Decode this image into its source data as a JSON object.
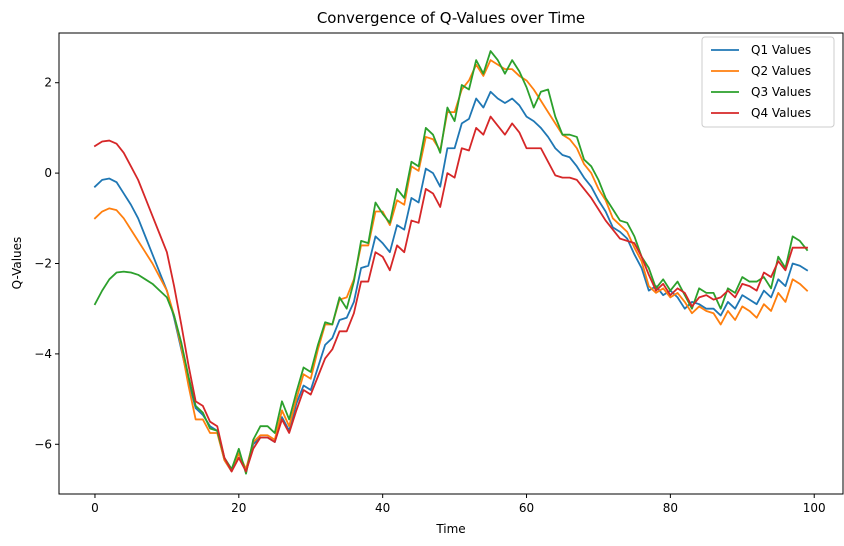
{
  "chart_data": {
    "type": "line",
    "title": "Convergence of Q-Values over Time",
    "xlabel": "Time",
    "ylabel": "Q-Values",
    "xlim": [
      -5,
      104
    ],
    "ylim": [
      -7.1,
      3.1
    ],
    "xticks": [
      0,
      20,
      40,
      60,
      80,
      100
    ],
    "yticks": [
      -6,
      -4,
      -2,
      0,
      2
    ],
    "xtick_labels": [
      "0",
      "20",
      "40",
      "60",
      "80",
      "100"
    ],
    "ytick_labels": [
      "−6",
      "−4",
      "−2",
      "0",
      "2"
    ],
    "grid": false,
    "legend_position": "top-right",
    "x": [
      0,
      1,
      2,
      3,
      4,
      5,
      6,
      7,
      8,
      9,
      10,
      11,
      12,
      13,
      14,
      15,
      16,
      17,
      18,
      19,
      20,
      21,
      22,
      23,
      24,
      25,
      26,
      27,
      28,
      29,
      30,
      31,
      32,
      33,
      34,
      35,
      36,
      37,
      38,
      39,
      40,
      41,
      42,
      43,
      44,
      45,
      46,
      47,
      48,
      49,
      50,
      51,
      52,
      53,
      54,
      55,
      56,
      57,
      58,
      59,
      60,
      61,
      62,
      63,
      64,
      65,
      66,
      67,
      68,
      69,
      70,
      71,
      72,
      73,
      74,
      75,
      76,
      77,
      78,
      79,
      80,
      81,
      82,
      83,
      84,
      85,
      86,
      87,
      88,
      89,
      90,
      91,
      92,
      93,
      94,
      95,
      96,
      97,
      98,
      99
    ],
    "series": [
      {
        "name": "Q1 Values",
        "color": "#1f77b4",
        "values": [
          -0.3,
          -0.15,
          -0.12,
          -0.2,
          -0.45,
          -0.7,
          -1.0,
          -1.4,
          -1.8,
          -2.2,
          -2.6,
          -3.2,
          -3.9,
          -4.6,
          -5.2,
          -5.35,
          -5.6,
          -5.7,
          -6.35,
          -6.6,
          -6.2,
          -6.6,
          -6.0,
          -5.85,
          -5.85,
          -5.95,
          -5.4,
          -5.7,
          -5.1,
          -4.7,
          -4.8,
          -4.3,
          -3.8,
          -3.65,
          -3.25,
          -3.2,
          -2.85,
          -2.1,
          -2.05,
          -1.4,
          -1.55,
          -1.75,
          -1.15,
          -1.25,
          -0.55,
          -0.65,
          0.1,
          0.0,
          -0.3,
          0.55,
          0.55,
          1.1,
          1.2,
          1.65,
          1.45,
          1.8,
          1.65,
          1.55,
          1.65,
          1.5,
          1.25,
          1.15,
          1.0,
          0.8,
          0.55,
          0.4,
          0.35,
          0.15,
          -0.1,
          -0.3,
          -0.6,
          -0.85,
          -1.2,
          -1.3,
          -1.45,
          -1.8,
          -2.1,
          -2.6,
          -2.5,
          -2.7,
          -2.6,
          -2.75,
          -3.0,
          -2.85,
          -2.9,
          -3.0,
          -3.0,
          -3.15,
          -2.85,
          -3.0,
          -2.7,
          -2.8,
          -2.9,
          -2.6,
          -2.75,
          -2.35,
          -2.5,
          -2.0,
          -2.05,
          -2.15
        ]
      },
      {
        "name": "Q2 Values",
        "color": "#ff7f0e",
        "values": [
          -1.0,
          -0.85,
          -0.78,
          -0.82,
          -1.0,
          -1.25,
          -1.5,
          -1.75,
          -2.0,
          -2.3,
          -2.6,
          -3.15,
          -3.85,
          -4.7,
          -5.45,
          -5.45,
          -5.75,
          -5.75,
          -6.35,
          -6.6,
          -6.2,
          -6.55,
          -5.95,
          -5.8,
          -5.8,
          -5.9,
          -5.25,
          -5.6,
          -5.0,
          -4.45,
          -4.55,
          -3.9,
          -3.35,
          -3.35,
          -2.8,
          -2.75,
          -2.35,
          -1.6,
          -1.6,
          -0.85,
          -0.85,
          -1.15,
          -0.6,
          -0.7,
          0.15,
          0.05,
          0.8,
          0.75,
          0.5,
          1.35,
          1.35,
          1.85,
          2.05,
          2.4,
          2.15,
          2.5,
          2.4,
          2.3,
          2.3,
          2.15,
          2.05,
          1.85,
          1.6,
          1.35,
          1.1,
          0.85,
          0.75,
          0.55,
          0.2,
          0.0,
          -0.35,
          -0.6,
          -1.0,
          -1.15,
          -1.3,
          -1.65,
          -1.95,
          -2.5,
          -2.65,
          -2.55,
          -2.75,
          -2.65,
          -2.85,
          -3.1,
          -2.95,
          -3.05,
          -3.1,
          -3.35,
          -3.05,
          -3.25,
          -2.95,
          -3.05,
          -3.2,
          -2.9,
          -3.05,
          -2.65,
          -2.85,
          -2.35,
          -2.45,
          -2.6
        ]
      },
      {
        "name": "Q3 Values",
        "color": "#2ca02c",
        "values": [
          -2.9,
          -2.6,
          -2.35,
          -2.2,
          -2.18,
          -2.2,
          -2.25,
          -2.35,
          -2.45,
          -2.6,
          -2.75,
          -3.15,
          -3.75,
          -4.5,
          -5.15,
          -5.3,
          -5.65,
          -5.7,
          -6.3,
          -6.55,
          -6.1,
          -6.65,
          -5.9,
          -5.6,
          -5.6,
          -5.75,
          -5.05,
          -5.45,
          -4.85,
          -4.3,
          -4.4,
          -3.8,
          -3.3,
          -3.35,
          -2.75,
          -3.0,
          -2.4,
          -1.5,
          -1.55,
          -0.65,
          -0.9,
          -1.1,
          -0.35,
          -0.55,
          0.25,
          0.15,
          1.0,
          0.85,
          0.45,
          1.45,
          1.15,
          1.95,
          1.85,
          2.5,
          2.2,
          2.7,
          2.5,
          2.2,
          2.5,
          2.25,
          1.9,
          1.45,
          1.8,
          1.85,
          1.25,
          0.85,
          0.85,
          0.8,
          0.3,
          0.15,
          -0.15,
          -0.55,
          -0.8,
          -1.05,
          -1.1,
          -1.4,
          -1.85,
          -2.1,
          -2.55,
          -2.35,
          -2.6,
          -2.4,
          -2.7,
          -3.0,
          -2.55,
          -2.65,
          -2.65,
          -3.0,
          -2.55,
          -2.65,
          -2.3,
          -2.4,
          -2.4,
          -2.3,
          -2.55,
          -1.85,
          -2.1,
          -1.4,
          -1.5,
          -1.7
        ]
      },
      {
        "name": "Q4 Values",
        "color": "#d62728",
        "values": [
          0.6,
          0.7,
          0.72,
          0.65,
          0.45,
          0.15,
          -0.15,
          -0.55,
          -0.95,
          -1.35,
          -1.75,
          -2.5,
          -3.35,
          -4.25,
          -5.05,
          -5.15,
          -5.5,
          -5.6,
          -6.3,
          -6.6,
          -6.3,
          -6.6,
          -6.1,
          -5.85,
          -5.85,
          -5.95,
          -5.45,
          -5.75,
          -5.25,
          -4.8,
          -4.9,
          -4.5,
          -4.1,
          -3.9,
          -3.5,
          -3.5,
          -3.1,
          -2.4,
          -2.4,
          -1.75,
          -1.85,
          -2.15,
          -1.6,
          -1.75,
          -1.05,
          -1.1,
          -0.35,
          -0.45,
          -0.75,
          0.0,
          -0.1,
          0.55,
          0.5,
          1.0,
          0.85,
          1.25,
          1.05,
          0.85,
          1.1,
          0.9,
          0.55,
          0.55,
          0.55,
          0.25,
          -0.05,
          -0.1,
          -0.1,
          -0.15,
          -0.35,
          -0.55,
          -0.8,
          -1.05,
          -1.25,
          -1.45,
          -1.5,
          -1.55,
          -1.85,
          -2.25,
          -2.6,
          -2.45,
          -2.7,
          -2.55,
          -2.65,
          -2.95,
          -2.75,
          -2.7,
          -2.8,
          -2.75,
          -2.6,
          -2.75,
          -2.45,
          -2.5,
          -2.6,
          -2.2,
          -2.3,
          -1.95,
          -2.15,
          -1.65,
          -1.65,
          -1.65
        ]
      }
    ]
  }
}
